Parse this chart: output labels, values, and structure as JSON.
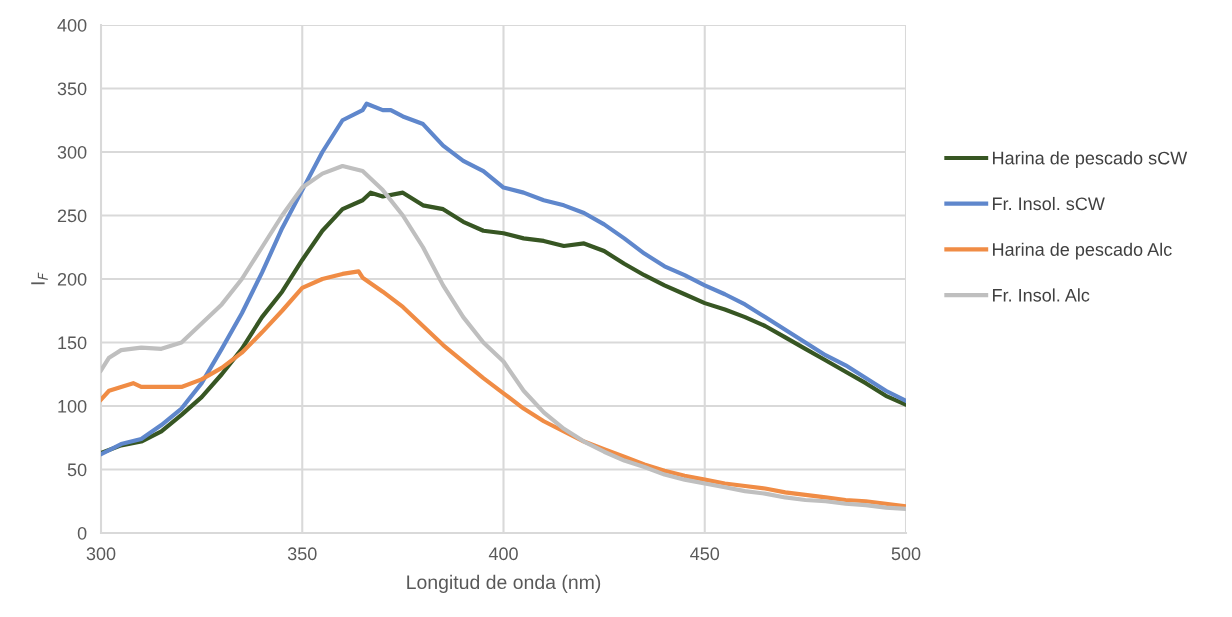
{
  "chart_data": {
    "type": "line",
    "xlabel": "Longitud de onda (nm)",
    "ylabel": "I$_{F}$",
    "xlim": [
      300,
      500
    ],
    "xticks": [
      300,
      350,
      400,
      450,
      500
    ],
    "ylim": [
      0,
      400
    ],
    "yticks": [
      0,
      50,
      100,
      150,
      200,
      250,
      300,
      350,
      400
    ],
    "grid": true,
    "legend": "right",
    "series": [
      {
        "name": "Harina de pescado sCW",
        "color": "#375623",
        "x": [
          300,
          305,
          310,
          315,
          320,
          325,
          330,
          335,
          340,
          345,
          350,
          355,
          360,
          365,
          367,
          370,
          375,
          380,
          385,
          390,
          395,
          400,
          405,
          410,
          415,
          420,
          425,
          430,
          435,
          440,
          445,
          450,
          455,
          460,
          465,
          470,
          475,
          480,
          485,
          490,
          495,
          500
        ],
        "values": [
          63,
          69,
          72,
          80,
          93,
          107,
          125,
          145,
          170,
          190,
          215,
          238,
          255,
          262,
          268,
          265,
          268,
          258,
          255,
          245,
          238,
          236,
          232,
          230,
          226,
          228,
          222,
          212,
          203,
          195,
          188,
          181,
          176,
          170,
          163,
          154,
          145,
          136,
          127,
          118,
          108,
          101
        ]
      },
      {
        "name": "Fr. Insol. sCW",
        "color": "#5f87cc",
        "x": [
          300,
          305,
          310,
          315,
          320,
          325,
          330,
          335,
          340,
          345,
          350,
          355,
          360,
          365,
          366,
          370,
          372,
          375,
          380,
          385,
          390,
          395,
          400,
          405,
          410,
          415,
          420,
          425,
          430,
          435,
          440,
          445,
          450,
          455,
          460,
          465,
          470,
          475,
          480,
          485,
          490,
          495,
          500
        ],
        "values": [
          62,
          70,
          74,
          85,
          98,
          118,
          145,
          173,
          205,
          240,
          270,
          300,
          325,
          333,
          338,
          333,
          333,
          328,
          322,
          305,
          293,
          285,
          272,
          268,
          262,
          258,
          252,
          243,
          232,
          220,
          210,
          203,
          195,
          188,
          180,
          170,
          160,
          150,
          140,
          132,
          122,
          112,
          104
        ]
      },
      {
        "name": "Harina de pescado Alc",
        "color": "#f08c45",
        "x": [
          300,
          302,
          305,
          308,
          310,
          315,
          320,
          325,
          330,
          335,
          340,
          345,
          350,
          355,
          360,
          364,
          365,
          370,
          375,
          380,
          385,
          390,
          395,
          400,
          405,
          410,
          415,
          420,
          425,
          430,
          435,
          440,
          445,
          450,
          455,
          460,
          465,
          470,
          475,
          480,
          485,
          490,
          495,
          500
        ],
        "values": [
          105,
          112,
          115,
          118,
          115,
          115,
          115,
          121,
          130,
          142,
          158,
          175,
          193,
          200,
          204,
          206,
          201,
          190,
          178,
          163,
          148,
          135,
          122,
          110,
          98,
          88,
          80,
          72,
          66,
          60,
          54,
          49,
          45,
          42,
          39,
          37,
          35,
          32,
          30,
          28,
          26,
          25,
          23,
          21
        ]
      },
      {
        "name": "Fr. Insol. Alc",
        "color": "#bfbfbf",
        "x": [
          300,
          302,
          305,
          310,
          315,
          318,
          320,
          325,
          330,
          335,
          340,
          345,
          350,
          355,
          360,
          365,
          370,
          375,
          380,
          385,
          390,
          395,
          400,
          405,
          410,
          415,
          420,
          425,
          430,
          435,
          440,
          445,
          450,
          455,
          460,
          465,
          470,
          475,
          480,
          485,
          490,
          495,
          500
        ],
        "values": [
          128,
          138,
          144,
          146,
          145,
          148,
          150,
          165,
          180,
          200,
          225,
          250,
          272,
          283,
          289,
          285,
          270,
          250,
          225,
          195,
          170,
          150,
          135,
          112,
          95,
          82,
          72,
          64,
          57,
          52,
          46,
          42,
          39,
          36,
          33,
          31,
          28,
          26,
          25,
          23,
          22,
          20,
          19
        ]
      }
    ]
  }
}
